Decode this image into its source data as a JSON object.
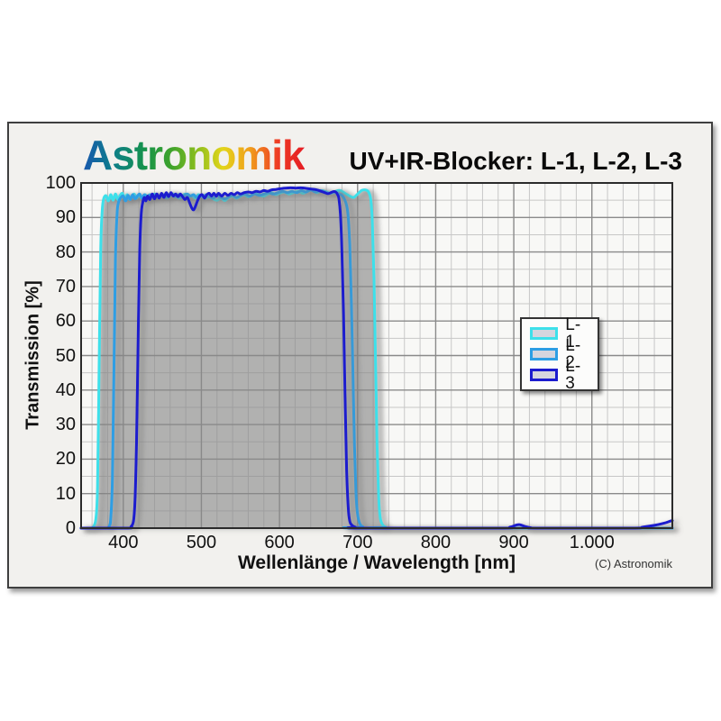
{
  "header": {
    "logo_text": "Astronomik"
  },
  "footer": {
    "copyright": "(C) Astronomik"
  },
  "chart_data": {
    "type": "line",
    "title": "UV+IR-Blocker: L-1, L-2, L-3",
    "xlabel": "Wellenlänge / Wavelength [nm]",
    "ylabel": "Transmission [%]",
    "xlim": [
      346,
      1103
    ],
    "ylim": [
      0,
      100
    ],
    "grid": "on",
    "x_minor_step_nm": 20,
    "y_minor_step_pct": 5,
    "x_ticks": [
      400,
      500,
      600,
      700,
      800,
      900,
      1000
    ],
    "x_tick_labels": [
      "400",
      "500",
      "600",
      "700",
      "800",
      "900",
      "1.000"
    ],
    "y_ticks": [
      0,
      10,
      20,
      30,
      40,
      50,
      60,
      70,
      80,
      90,
      100
    ],
    "y_tick_labels": [
      "0",
      "10",
      "20",
      "30",
      "40",
      "50",
      "60",
      "70",
      "80",
      "90",
      "100"
    ],
    "legend": {
      "position": "right-center",
      "entries": [
        {
          "label": "L-1",
          "color": "#3EE0EA"
        },
        {
          "label": "L-2",
          "color": "#2D9EE4"
        },
        {
          "label": "L-3",
          "color": "#1B1BCE"
        }
      ]
    },
    "fill_under": {
      "series": "L-1",
      "color": "#8f8f8f",
      "opacity": 0.45
    },
    "series": [
      {
        "name": "L-1",
        "color": "#3EE0EA",
        "points": [
          [
            346,
            0
          ],
          [
            358,
            0
          ],
          [
            362,
            0.5
          ],
          [
            365,
            3
          ],
          [
            367,
            12
          ],
          [
            369,
            45
          ],
          [
            371,
            80
          ],
          [
            373,
            92
          ],
          [
            375,
            95.5
          ],
          [
            378,
            96.3
          ],
          [
            381,
            94.8
          ],
          [
            384,
            96.6
          ],
          [
            387,
            95.0
          ],
          [
            390,
            96.8
          ],
          [
            393,
            95.2
          ],
          [
            396,
            96.4
          ],
          [
            399,
            97.0
          ],
          [
            402,
            95.4
          ],
          [
            405,
            96.6
          ],
          [
            408,
            95.2
          ],
          [
            411,
            96.2
          ],
          [
            414,
            96.8
          ],
          [
            417,
            95.6
          ],
          [
            420,
            96.4
          ],
          [
            424,
            95.6
          ],
          [
            428,
            96.6
          ],
          [
            432,
            95.8
          ],
          [
            436,
            96.2
          ],
          [
            440,
            96.8
          ],
          [
            444,
            95.8
          ],
          [
            448,
            96.0
          ],
          [
            452,
            96.6
          ],
          [
            456,
            95.6
          ],
          [
            460,
            96.2
          ],
          [
            464,
            96.8
          ],
          [
            468,
            96.0
          ],
          [
            472,
            95.6
          ],
          [
            476,
            96.4
          ],
          [
            480,
            96.8
          ],
          [
            484,
            96.0
          ],
          [
            488,
            96.4
          ],
          [
            492,
            95.6
          ],
          [
            496,
            96.6
          ],
          [
            500,
            96.2
          ],
          [
            505,
            95.6
          ],
          [
            510,
            96.0
          ],
          [
            515,
            95.4
          ],
          [
            520,
            95.0
          ],
          [
            525,
            95.6
          ],
          [
            530,
            94.9
          ],
          [
            535,
            95.8
          ],
          [
            540,
            96.2
          ],
          [
            545,
            95.6
          ],
          [
            550,
            96.2
          ],
          [
            555,
            96.6
          ],
          [
            560,
            96.0
          ],
          [
            565,
            96.6
          ],
          [
            570,
            97.0
          ],
          [
            575,
            96.4
          ],
          [
            580,
            96.2
          ],
          [
            585,
            96.8
          ],
          [
            590,
            97.2
          ],
          [
            595,
            96.6
          ],
          [
            600,
            97.0
          ],
          [
            606,
            97.4
          ],
          [
            612,
            96.8
          ],
          [
            618,
            97.2
          ],
          [
            624,
            97.6
          ],
          [
            630,
            97.0
          ],
          [
            636,
            97.6
          ],
          [
            642,
            98.0
          ],
          [
            648,
            97.2
          ],
          [
            654,
            97.8
          ],
          [
            660,
            97.4
          ],
          [
            666,
            97.0
          ],
          [
            672,
            97.6
          ],
          [
            678,
            97.8
          ],
          [
            684,
            97.0
          ],
          [
            690,
            96.2
          ],
          [
            695,
            95.8
          ],
          [
            700,
            96.8
          ],
          [
            705,
            97.8
          ],
          [
            710,
            98.0
          ],
          [
            714,
            97.4
          ],
          [
            717,
            95.0
          ],
          [
            719,
            88
          ],
          [
            721,
            72
          ],
          [
            723,
            48
          ],
          [
            725,
            24
          ],
          [
            727,
            9
          ],
          [
            729,
            3
          ],
          [
            732,
            1
          ],
          [
            736,
            0.3
          ],
          [
            742,
            0
          ],
          [
            1103,
            0
          ]
        ]
      },
      {
        "name": "L-2",
        "color": "#2D9EE4",
        "points": [
          [
            346,
            0
          ],
          [
            378,
            0
          ],
          [
            382,
            0.6
          ],
          [
            384,
            3
          ],
          [
            386,
            14
          ],
          [
            388,
            45
          ],
          [
            390,
            78
          ],
          [
            392,
            91
          ],
          [
            394,
            94.5
          ],
          [
            397,
            95.8
          ],
          [
            400,
            96.2
          ],
          [
            403,
            94.8
          ],
          [
            406,
            96.4
          ],
          [
            409,
            95.2
          ],
          [
            412,
            96.6
          ],
          [
            415,
            95.4
          ],
          [
            418,
            96.2
          ],
          [
            421,
            96.8
          ],
          [
            424,
            95.6
          ],
          [
            427,
            96.6
          ],
          [
            430,
            95.8
          ],
          [
            434,
            96.6
          ],
          [
            438,
            95.8
          ],
          [
            442,
            96.8
          ],
          [
            446,
            96.0
          ],
          [
            450,
            96.6
          ],
          [
            454,
            95.8
          ],
          [
            458,
            96.4
          ],
          [
            462,
            96.8
          ],
          [
            466,
            96.0
          ],
          [
            470,
            96.6
          ],
          [
            474,
            95.8
          ],
          [
            478,
            96.4
          ],
          [
            482,
            96.8
          ],
          [
            486,
            96.2
          ],
          [
            490,
            96.6
          ],
          [
            494,
            95.8
          ],
          [
            498,
            96.4
          ],
          [
            502,
            96.0
          ],
          [
            506,
            96.6
          ],
          [
            510,
            96.0
          ],
          [
            515,
            95.6
          ],
          [
            520,
            96.2
          ],
          [
            525,
            95.8
          ],
          [
            530,
            95.4
          ],
          [
            535,
            96.0
          ],
          [
            540,
            96.4
          ],
          [
            545,
            95.8
          ],
          [
            550,
            96.4
          ],
          [
            556,
            96.8
          ],
          [
            562,
            96.2
          ],
          [
            568,
            96.8
          ],
          [
            574,
            96.4
          ],
          [
            580,
            96.8
          ],
          [
            586,
            97.2
          ],
          [
            592,
            96.8
          ],
          [
            598,
            97.2
          ],
          [
            604,
            97.6
          ],
          [
            610,
            97.2
          ],
          [
            616,
            97.6
          ],
          [
            622,
            97.2
          ],
          [
            628,
            97.8
          ],
          [
            634,
            97.4
          ],
          [
            640,
            98.0
          ],
          [
            646,
            97.4
          ],
          [
            652,
            97.8
          ],
          [
            658,
            97.4
          ],
          [
            664,
            97.0
          ],
          [
            668,
            97.4
          ],
          [
            672,
            97.2
          ],
          [
            676,
            96.8
          ],
          [
            680,
            96.4
          ],
          [
            683,
            95.4
          ],
          [
            686,
            93.5
          ],
          [
            688,
            90
          ],
          [
            690,
            82
          ],
          [
            692,
            66
          ],
          [
            694,
            45
          ],
          [
            696,
            24
          ],
          [
            698,
            10
          ],
          [
            700,
            4
          ],
          [
            703,
            1.2
          ],
          [
            707,
            0.4
          ],
          [
            712,
            0
          ],
          [
            1103,
            0
          ]
        ]
      },
      {
        "name": "L-3",
        "color": "#1B1BCE",
        "points": [
          [
            346,
            0
          ],
          [
            406,
            0
          ],
          [
            410,
            0.5
          ],
          [
            413,
            2
          ],
          [
            415,
            8
          ],
          [
            417,
            25
          ],
          [
            419,
            55
          ],
          [
            421,
            80
          ],
          [
            423,
            91
          ],
          [
            425,
            94.5
          ],
          [
            427,
            95.8
          ],
          [
            429,
            94.8
          ],
          [
            431,
            96.2
          ],
          [
            434,
            95.2
          ],
          [
            437,
            96.8
          ],
          [
            440,
            95.4
          ],
          [
            443,
            96.8
          ],
          [
            446,
            95.6
          ],
          [
            449,
            97.0
          ],
          [
            452,
            95.8
          ],
          [
            455,
            97.2
          ],
          [
            458,
            96.0
          ],
          [
            461,
            97.2
          ],
          [
            464,
            96.2
          ],
          [
            467,
            96.8
          ],
          [
            470,
            96.0
          ],
          [
            473,
            96.8
          ],
          [
            476,
            96.0
          ],
          [
            479,
            95.2
          ],
          [
            482,
            95.8
          ],
          [
            485,
            94.2
          ],
          [
            488,
            92.6
          ],
          [
            490,
            92.2
          ],
          [
            492,
            93.0
          ],
          [
            495,
            94.8
          ],
          [
            498,
            96.2
          ],
          [
            501,
            96.6
          ],
          [
            504,
            95.6
          ],
          [
            507,
            96.6
          ],
          [
            510,
            97.0
          ],
          [
            513,
            96.2
          ],
          [
            516,
            97.0
          ],
          [
            519,
            96.2
          ],
          [
            522,
            97.0
          ],
          [
            526,
            96.2
          ],
          [
            530,
            97.0
          ],
          [
            534,
            96.4
          ],
          [
            538,
            97.0
          ],
          [
            542,
            96.6
          ],
          [
            546,
            97.2
          ],
          [
            550,
            96.8
          ],
          [
            555,
            97.2
          ],
          [
            560,
            97.4
          ],
          [
            565,
            97.2
          ],
          [
            570,
            97.6
          ],
          [
            575,
            97.4
          ],
          [
            580,
            97.8
          ],
          [
            585,
            97.6
          ],
          [
            590,
            98.0
          ],
          [
            595,
            98.1
          ],
          [
            600,
            98.3
          ],
          [
            607,
            98.5
          ],
          [
            614,
            98.6
          ],
          [
            621,
            98.5
          ],
          [
            628,
            98.6
          ],
          [
            635,
            98.4
          ],
          [
            642,
            98.2
          ],
          [
            648,
            98.0
          ],
          [
            653,
            97.6
          ],
          [
            658,
            97.2
          ],
          [
            662,
            96.9
          ],
          [
            666,
            97.2
          ],
          [
            669,
            97.5
          ],
          [
            672,
            97.4
          ],
          [
            674,
            96.8
          ],
          [
            676,
            95.5
          ],
          [
            678,
            91
          ],
          [
            680,
            80
          ],
          [
            682,
            62
          ],
          [
            684,
            38
          ],
          [
            686,
            17
          ],
          [
            688,
            6
          ],
          [
            690,
            2
          ],
          [
            693,
            0.8
          ],
          [
            697,
            0.3
          ],
          [
            702,
            0
          ],
          [
            880,
            0
          ],
          [
            895,
            0.3
          ],
          [
            903,
            0.9
          ],
          [
            908,
            1.0
          ],
          [
            914,
            0.5
          ],
          [
            922,
            0.1
          ],
          [
            930,
            0
          ],
          [
            1050,
            0
          ],
          [
            1065,
            0.3
          ],
          [
            1080,
            0.8
          ],
          [
            1092,
            1.4
          ],
          [
            1100,
            2.0
          ],
          [
            1103,
            2.2
          ]
        ]
      }
    ]
  }
}
